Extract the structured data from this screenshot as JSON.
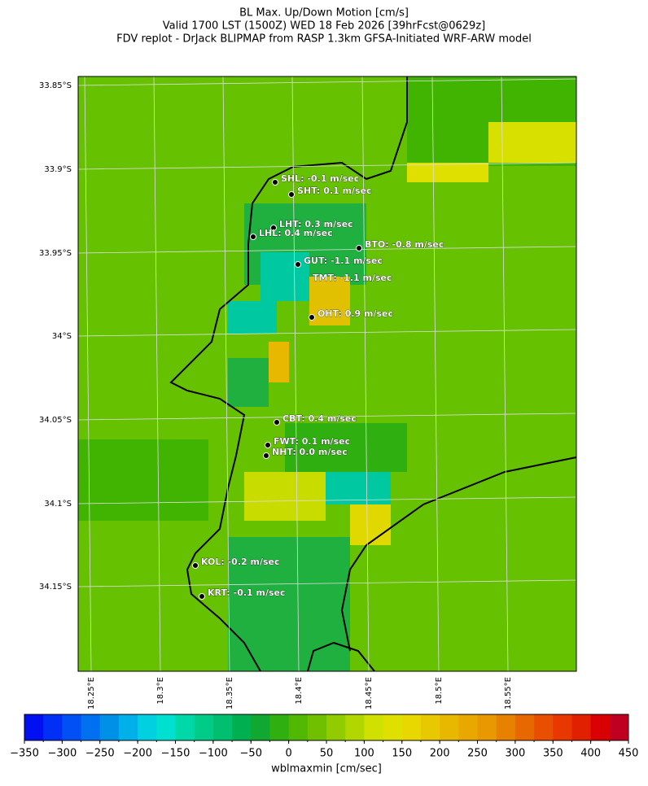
{
  "header": {
    "lines": [
      "BL Max. Up/Down Motion [cm/s]",
      "Valid 1700 LST (1500Z) WED 18 Feb 2026 [39hrFcst@0629z]",
      "FDV replot - DrJack BLIPMAP from RASP 1.3km GFSA-Initiated WRF-ARW model"
    ]
  },
  "map": {
    "lat_labels": [
      "33.85°S",
      "33.9°S",
      "33.95°S",
      "34°S",
      "34.05°S",
      "34.1°S",
      "34.15°S"
    ],
    "lon_labels": [
      "18.25°E",
      "18.3°E",
      "18.35°E",
      "18.4°E",
      "18.45°E",
      "18.5°E",
      "18.55°E"
    ],
    "stations": [
      "SHL: -0.1 m/sec",
      "SHT: 0.1 m/sec",
      "LHT: 0.3 m/sec",
      "LHL: 0.4 m/sec",
      "BTO: -0.8 m/sec",
      "GUT: -1.1 m/sec",
      "TMT: -1.1 m/sec",
      "OHT: 0.9 m/sec",
      "CBT: 0.4 m/sec",
      "FWT: 0.1 m/sec",
      "NHT: 0.0 m/sec",
      "KOL: -0.2 m/sec",
      "KRT: -0.1 m/sec"
    ]
  },
  "colorbar": {
    "ticks": [
      {
        "value": -350,
        "label": "−350"
      },
      {
        "value": -300,
        "label": "−300"
      },
      {
        "value": -250,
        "label": "−250"
      },
      {
        "value": -200,
        "label": "−200"
      },
      {
        "value": -150,
        "label": "−150"
      },
      {
        "value": -100,
        "label": "−100"
      },
      {
        "value": -50,
        "label": "−50"
      },
      0,
      50,
      100,
      150,
      200,
      250,
      300,
      350,
      400,
      450
    ],
    "colors": [
      "#0010f0",
      "#0030f5",
      "#0050f5",
      "#0070f0",
      "#0090e8",
      "#00b0e8",
      "#00d0e0",
      "#00e0d0",
      "#00d8a8",
      "#00cc88",
      "#00c070",
      "#00b050",
      "#10a830",
      "#30b010",
      "#50b800",
      "#70c000",
      "#90cc00",
      "#b0d800",
      "#d0e000",
      "#e0e000",
      "#e8d800",
      "#e8c800",
      "#e8b800",
      "#e8a800",
      "#e89800",
      "#e88000",
      "#e86800",
      "#e85000",
      "#e83800",
      "#e02000",
      "#d80000",
      "#c00020"
    ],
    "label": "wblmaxmin [cm/sec]"
  }
}
